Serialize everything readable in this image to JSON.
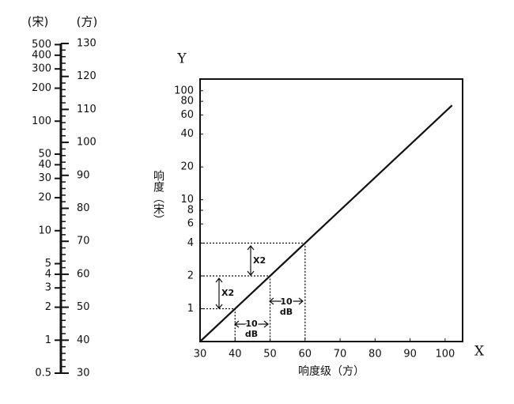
{
  "chart_data": [
    {
      "type": "scale",
      "left_header": "(宋)",
      "right_header": "(方)",
      "ylim": [
        30,
        130
      ],
      "yticks": [
        30,
        40,
        50,
        60,
        70,
        80,
        90,
        100,
        110,
        120,
        130
      ],
      "yminor": [
        32,
        34,
        36,
        38,
        42,
        44,
        46,
        48,
        52,
        54,
        56,
        58,
        62,
        64,
        66,
        68,
        72,
        74,
        76,
        78,
        82,
        84,
        86,
        88,
        92,
        94,
        96,
        98,
        102,
        104,
        106,
        108,
        112,
        114,
        116,
        118,
        122,
        124,
        126,
        128
      ],
      "sone_ticks": [
        500,
        400,
        300,
        200,
        100,
        50,
        40,
        30,
        20,
        10,
        5,
        4,
        3,
        2,
        1,
        0.5
      ]
    },
    {
      "type": "line",
      "xlabel": "响度级（方）",
      "ylabel": "响度（宋）",
      "x_axis_name": "X",
      "y_axis_name": "Y",
      "xlim": [
        30,
        105
      ],
      "ylim": [
        0.5,
        128
      ],
      "ylog": true,
      "xticks": [
        30,
        40,
        50,
        60,
        70,
        80,
        90,
        100
      ],
      "yticks": [
        1,
        2,
        4,
        6,
        8,
        10,
        20,
        40,
        60,
        80,
        100
      ],
      "series": [
        {
          "color": "#111111",
          "x": [
            30,
            102
          ],
          "values": [
            0.5,
            73.5
          ]
        }
      ],
      "guides": [
        {
          "x": 40,
          "y": 1
        },
        {
          "x": 50,
          "y": 2
        },
        {
          "x": 60,
          "y": 4
        }
      ],
      "annotations": [
        "X2",
        "X2",
        "10",
        "dB",
        "10",
        "dB"
      ]
    }
  ]
}
